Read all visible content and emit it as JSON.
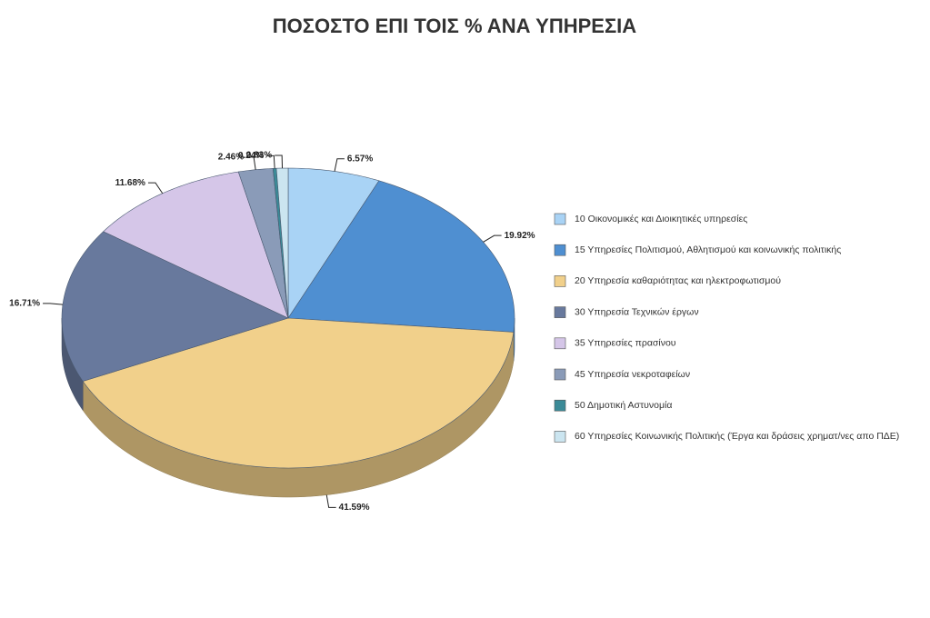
{
  "chart_data": {
    "type": "pie",
    "title": "ΠΟΣΟΣΤΟ ΕΠΙ ΤΟΙΣ % ΑΝΑ ΥΠΗΡΕΣΙΑ",
    "categories": [
      "10 Οικονομικές και Διοικητικές υπηρεσίες",
      "15 Υπηρεσίες Πολιτισμού, Αθλητισμού και κοινωνικής πολιτικής",
      "20 Υπηρεσία καθαριότητας και ηλεκτροφωτισμού",
      "30 Υπηρεσία Τεχνικών έργων",
      "35 Υπηρεσίες πρασίνου",
      "45 Υπηρεσία νεκροταφείων",
      "50 Δημοτική Αστυνομία",
      "60 Υπηρεσίες Κοινωνικής Πολιτικής (Έργα και δράσεις χρηματ/νες απο ΠΔΕ)"
    ],
    "values": [
      6.57,
      19.92,
      41.59,
      16.71,
      11.68,
      2.46,
      0.24,
      0.83
    ],
    "value_labels": [
      "6.57%",
      "19.92%",
      "41.59%",
      "16.71%",
      "11.68%",
      "2.46%",
      "0.24%",
      "0.83%"
    ],
    "colors": [
      "#a9d3f5",
      "#4f8fd1",
      "#f1d08b",
      "#68799d",
      "#d5c6e8",
      "#8a9bb8",
      "#3b8a97",
      "#cbe5f0"
    ],
    "legend": "right"
  }
}
